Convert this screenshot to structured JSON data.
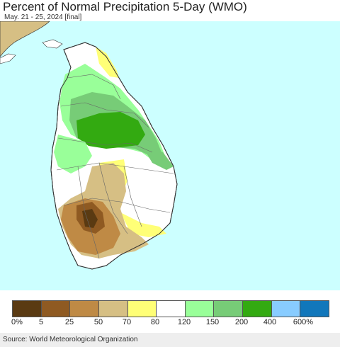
{
  "title": "Percent of Normal Precipitation 5-Day (WMO)",
  "subtitle": "May. 21 - 25, 2024 [final]",
  "legend": {
    "colors": [
      "#5a3a12",
      "#8f5a22",
      "#bf8a45",
      "#d6bf84",
      "#ffff77",
      "#ffffff",
      "#99ff99",
      "#77cc77",
      "#33aa11",
      "#88ccff",
      "#1177bb"
    ],
    "ticks": [
      "0%",
      "5",
      "25",
      "50",
      "70",
      "80",
      "120",
      "150",
      "200",
      "400",
      "600%"
    ]
  },
  "source": "Source: World Meteorological Organization"
}
